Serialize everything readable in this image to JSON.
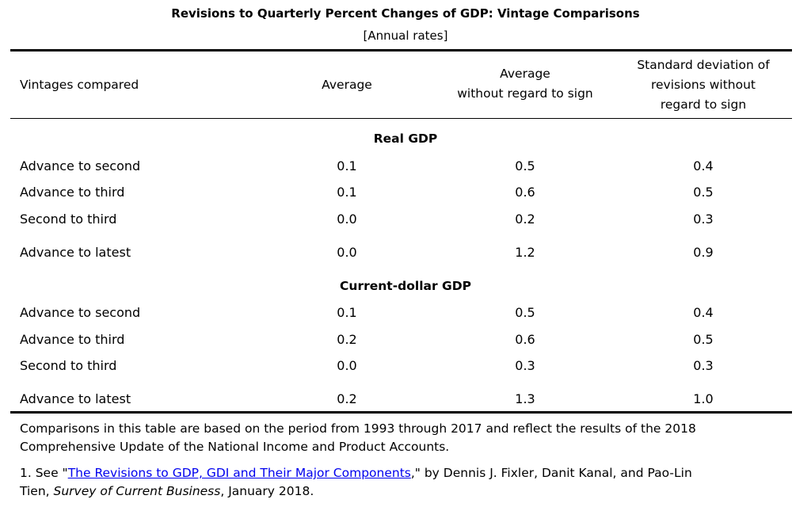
{
  "title": "Revisions to Quarterly Percent Changes of GDP: Vintage Comparisons",
  "subtitle": "[Annual rates]",
  "headers": {
    "col0": "Vintages compared",
    "col1": "Average",
    "col2_line1": "Average",
    "col2_line2": "without regard to sign",
    "col3_line1": "Standard deviation of",
    "col3_line2": "revisions without",
    "col3_line3": "regard to sign"
  },
  "sections": [
    {
      "name": "Real GDP",
      "rows": [
        {
          "label": "Advance to second",
          "average": "0.1",
          "avg_no_sign": "0.5",
          "std_dev": "0.4"
        },
        {
          "label": "Advance to third",
          "average": "0.1",
          "avg_no_sign": "0.6",
          "std_dev": "0.5"
        },
        {
          "label": "Second to third",
          "average": "0.0",
          "avg_no_sign": "0.2",
          "std_dev": "0.3"
        },
        {
          "label": "Advance to latest",
          "average": "0.0",
          "avg_no_sign": "1.2",
          "std_dev": "0.9"
        }
      ]
    },
    {
      "name": "Current-dollar GDP",
      "rows": [
        {
          "label": "Advance to second",
          "average": "0.1",
          "avg_no_sign": "0.5",
          "std_dev": "0.4"
        },
        {
          "label": "Advance to third",
          "average": "0.2",
          "avg_no_sign": "0.6",
          "std_dev": "0.5"
        },
        {
          "label": "Second to third",
          "average": "0.0",
          "avg_no_sign": "0.3",
          "std_dev": "0.3"
        },
        {
          "label": "Advance to latest",
          "average": "0.2",
          "avg_no_sign": "1.3",
          "std_dev": "1.0"
        }
      ]
    }
  ],
  "notes": {
    "comparison_line1": "Comparisons in this table are based on the period from 1993 through 2017 and reflect the results of the 2018",
    "comparison_line2": "Comprehensive Update of the National Income and Product Accounts.",
    "footnote_prefix": "1. See \"",
    "footnote_link": "The Revisions to GDP, GDI and Their Major Components",
    "footnote_after_link": ",\" by Dennis J. Fixler, Danit Kanal, and Pao-Lin",
    "footnote_line2_start": "Tien, ",
    "footnote_publication": "Survey of Current Business",
    "footnote_line2_end": ", January 2018."
  }
}
